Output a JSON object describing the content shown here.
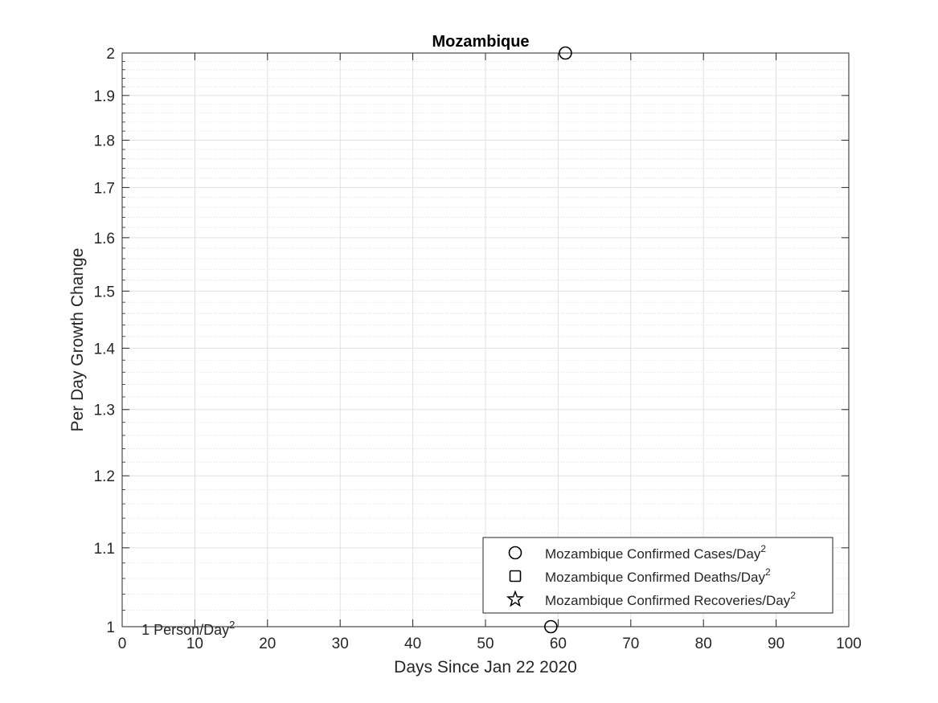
{
  "chart_data": {
    "type": "scatter",
    "title": "Mozambique",
    "xlabel": "Days Since Jan 22 2020",
    "ylabel": "Per Day Growth Change",
    "xlim": [
      0,
      100
    ],
    "ylim": [
      1,
      2
    ],
    "y_scale": "log",
    "grid": true,
    "minor_grid": true,
    "x_ticks": [
      "0",
      "10",
      "20",
      "30",
      "40",
      "50",
      "60",
      "70",
      "80",
      "90",
      "100"
    ],
    "x_tick_values": [
      0,
      10,
      20,
      30,
      40,
      50,
      60,
      70,
      80,
      90,
      100
    ],
    "y_ticks": [
      "1",
      "1.1",
      "1.2",
      "1.3",
      "1.4",
      "1.5",
      "1.6",
      "1.7",
      "1.8",
      "1.9",
      "2"
    ],
    "y_tick_values": [
      1,
      1.1,
      1.2,
      1.3,
      1.4,
      1.5,
      1.6,
      1.7,
      1.8,
      1.9,
      2
    ],
    "series": [
      {
        "name": "Mozambique Confirmed Cases/Day",
        "marker": "circle",
        "points": [
          {
            "x": 59,
            "y": 1
          },
          {
            "x": 61,
            "y": 2
          }
        ]
      },
      {
        "name": "Mozambique Confirmed Deaths/Day",
        "marker": "square",
        "points": []
      },
      {
        "name": "Mozambique Confirmed Recoveries/Day",
        "marker": "star",
        "points": []
      }
    ],
    "legend_position": "bottom-right",
    "legend_superscript": "2",
    "annotation": {
      "text": "1 Person/Day",
      "superscript": "2",
      "x": 3,
      "y": 1
    }
  }
}
